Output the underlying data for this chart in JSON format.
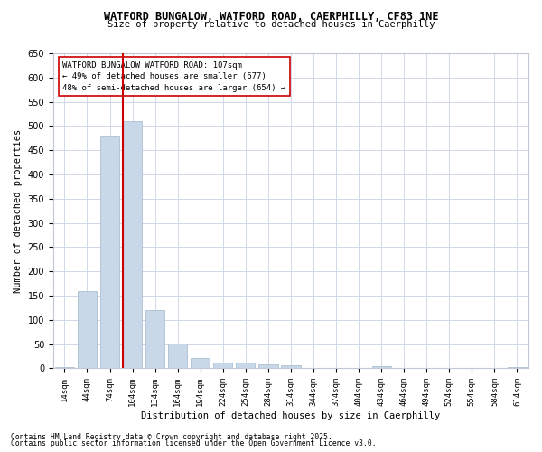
{
  "title_line1": "WATFORD BUNGALOW, WATFORD ROAD, CAERPHILLY, CF83 1NE",
  "title_line2": "Size of property relative to detached houses in Caerphilly",
  "xlabel": "Distribution of detached houses by size in Caerphilly",
  "ylabel": "Number of detached properties",
  "categories": [
    "14sqm",
    "44sqm",
    "74sqm",
    "104sqm",
    "134sqm",
    "164sqm",
    "194sqm",
    "224sqm",
    "254sqm",
    "284sqm",
    "314sqm",
    "344sqm",
    "374sqm",
    "404sqm",
    "434sqm",
    "464sqm",
    "494sqm",
    "524sqm",
    "554sqm",
    "584sqm",
    "614sqm"
  ],
  "values": [
    3,
    160,
    480,
    510,
    120,
    52,
    22,
    12,
    12,
    9,
    6,
    0,
    0,
    0,
    4,
    0,
    0,
    0,
    0,
    0,
    3
  ],
  "bar_color": "#c8d8e8",
  "bar_edge_color": "#a0b8cc",
  "vline_color": "#cc0000",
  "annotation_text": "WATFORD BUNGALOW WATFORD ROAD: 107sqm\n← 49% of detached houses are smaller (677)\n48% of semi-detached houses are larger (654) →",
  "annotation_box_color": "#ffffff",
  "annotation_box_edge": "#cc0000",
  "ylim": [
    0,
    650
  ],
  "yticks": [
    0,
    50,
    100,
    150,
    200,
    250,
    300,
    350,
    400,
    450,
    500,
    550,
    600,
    650
  ],
  "footnote1": "Contains HM Land Registry data © Crown copyright and database right 2025.",
  "footnote2": "Contains public sector information licensed under the Open Government Licence v3.0.",
  "background_color": "#ffffff",
  "grid_color": "#d0d8e8"
}
